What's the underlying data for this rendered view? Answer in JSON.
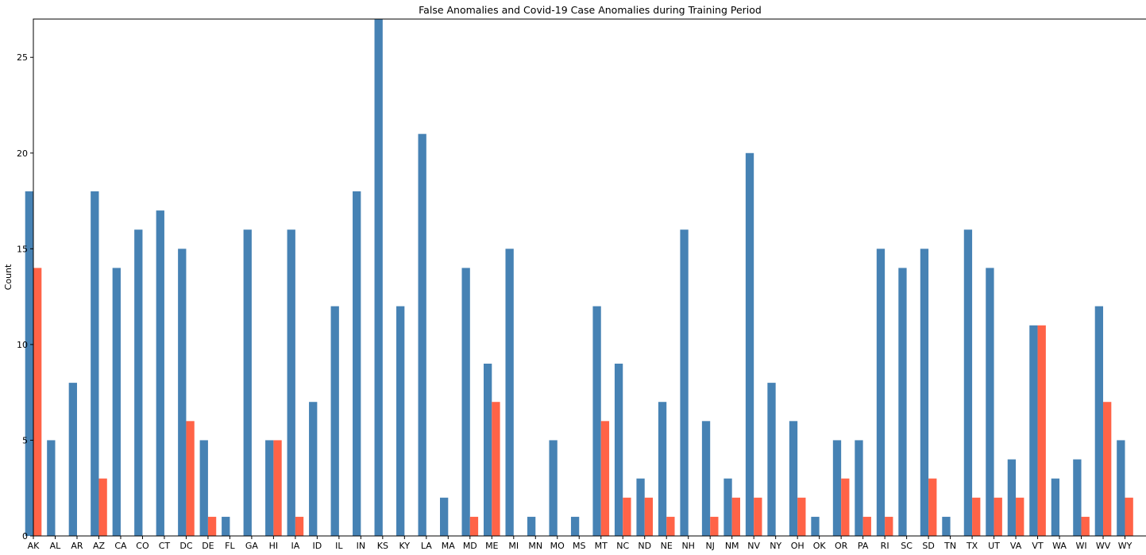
{
  "chart_data": {
    "type": "bar",
    "title": "False Anomalies and Covid-19 Case Anomalies during Training Period",
    "xlabel": "",
    "ylabel": "Count",
    "ylim": [
      0,
      27
    ],
    "yticks": [
      0,
      5,
      10,
      15,
      20,
      25
    ],
    "grid": false,
    "legend": "none",
    "categories": [
      "AK",
      "AL",
      "AR",
      "AZ",
      "CA",
      "CO",
      "CT",
      "DC",
      "DE",
      "FL",
      "GA",
      "HI",
      "IA",
      "ID",
      "IL",
      "IN",
      "KS",
      "KY",
      "LA",
      "MA",
      "MD",
      "ME",
      "MI",
      "MN",
      "MO",
      "MS",
      "MT",
      "NC",
      "ND",
      "NE",
      "NH",
      "NJ",
      "NM",
      "NV",
      "NY",
      "OH",
      "OK",
      "OR",
      "PA",
      "RI",
      "SC",
      "SD",
      "TN",
      "TX",
      "UT",
      "VA",
      "VT",
      "WA",
      "WI",
      "WV",
      "WY"
    ],
    "series": [
      {
        "color": "#4682b4",
        "values": [
          18,
          5,
          8,
          18,
          14,
          16,
          17,
          15,
          5,
          1,
          16,
          5,
          16,
          7,
          12,
          18,
          27,
          12,
          21,
          2,
          14,
          9,
          15,
          1,
          5,
          1,
          12,
          9,
          3,
          7,
          16,
          6,
          3,
          20,
          8,
          6,
          1,
          5,
          5,
          15,
          14,
          15,
          1,
          16,
          14,
          4,
          11,
          3,
          4,
          12,
          5
        ]
      },
      {
        "color": "#ff6347",
        "values": [
          14,
          0,
          0,
          3,
          0,
          0,
          0,
          6,
          1,
          0,
          0,
          5,
          1,
          0,
          0,
          0,
          0,
          0,
          0,
          0,
          1,
          7,
          0,
          0,
          0,
          0,
          6,
          2,
          2,
          1,
          0,
          1,
          2,
          2,
          0,
          2,
          0,
          3,
          1,
          1,
          0,
          3,
          0,
          2,
          2,
          2,
          11,
          0,
          1,
          7,
          2
        ]
      }
    ]
  }
}
